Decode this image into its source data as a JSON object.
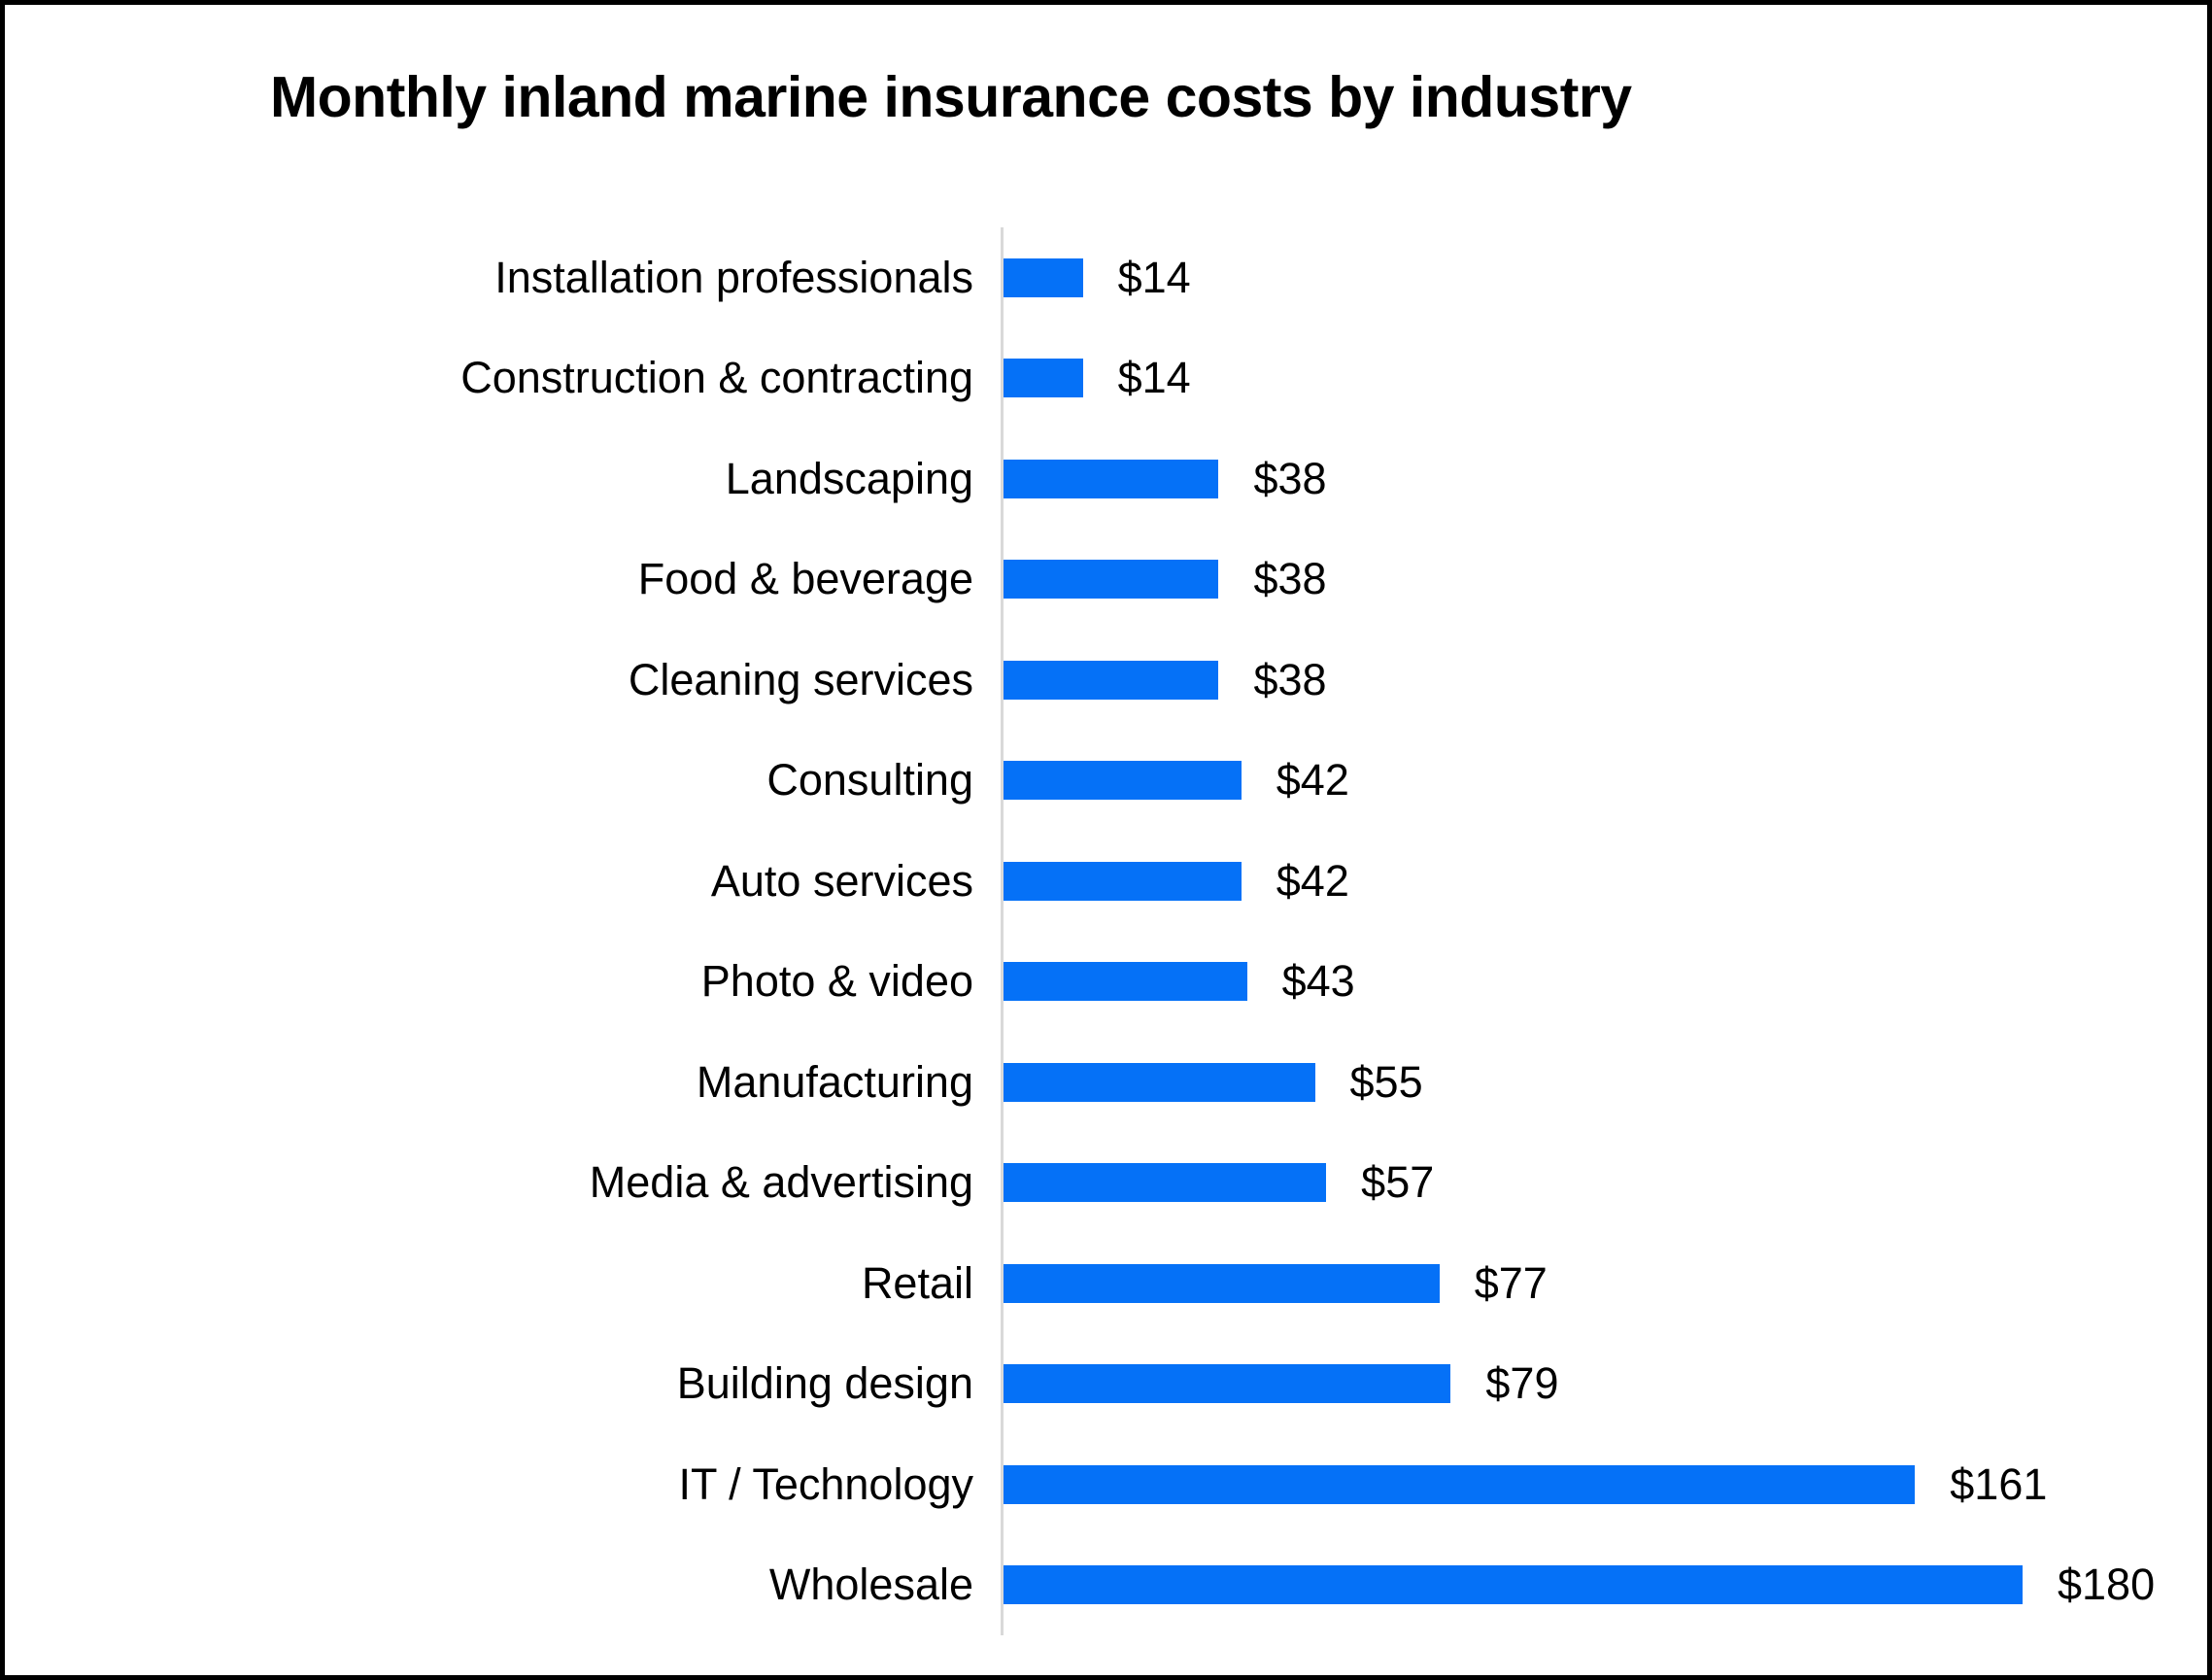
{
  "frame": {
    "border_color": "#000000",
    "background_color": "#FFFFFF"
  },
  "chart_data": {
    "type": "bar",
    "orientation": "horizontal",
    "title": "Monthly inland marine insurance costs by industry",
    "categories": [
      "Installation professionals",
      "Construction & contracting",
      "Landscaping",
      "Food & beverage",
      "Cleaning services",
      "Consulting",
      "Auto services",
      "Photo & video",
      "Manufacturing",
      "Media & advertising",
      "Retail",
      "Building design",
      "IT / Technology",
      "Wholesale"
    ],
    "values": [
      14,
      14,
      38,
      38,
      38,
      42,
      42,
      43,
      55,
      57,
      77,
      79,
      161,
      180
    ],
    "value_labels": [
      "$14",
      "$14",
      "$38",
      "$38",
      "$38",
      "$42",
      "$42",
      "$43",
      "$55",
      "$57",
      "$77",
      "$79",
      "$161",
      "$180"
    ],
    "value_prefix": "$",
    "xlim": [
      0,
      180
    ],
    "bar_color": "#0571F7",
    "axis_line_color": "#D9D9D9",
    "text_color": "#000000",
    "grid": false,
    "legend_position": "none",
    "value_labels_shown": true
  }
}
